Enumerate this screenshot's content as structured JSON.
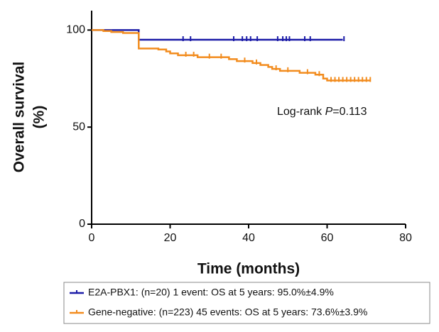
{
  "chart_data": {
    "type": "step",
    "xlabel": "Time (months)",
    "ylabel": [
      "Overall survival",
      "(%)"
    ],
    "annotation": [
      "Log-rank ",
      "P",
      "=0.113"
    ],
    "xlim": [
      0,
      80
    ],
    "xticks": [
      0,
      20,
      40,
      60,
      80
    ],
    "ylim": [
      0,
      110
    ],
    "yticks": [
      0,
      50,
      100
    ],
    "series": [
      {
        "name": "E2A-PBX1: (n=20) 1 event: OS at 5 years: 95.0%±4.9%",
        "color": "#1c1ca8",
        "x": [
          0,
          12,
          64
        ],
        "values": [
          100,
          95,
          95
        ],
        "censor_x": [
          23.3,
          25.2,
          36.2,
          38.4,
          39.5,
          40.5,
          42.2,
          47.4,
          48.7,
          49.6,
          50.4,
          54.3,
          55.7,
          64.3
        ],
        "censor_values": [
          95,
          95,
          95,
          95,
          95,
          95,
          95,
          95,
          95,
          95,
          95,
          95,
          95,
          95
        ]
      },
      {
        "name": "Gene-negative: (n=223) 45 events: OS at 5 years: 73.6%±3.9%",
        "color": "#f28c1e",
        "x": [
          0,
          3,
          5,
          8,
          12,
          17,
          19,
          20,
          22,
          27,
          35,
          37,
          41,
          43,
          45,
          46,
          48,
          53,
          57,
          59,
          60,
          71
        ],
        "values": [
          100,
          99.5,
          99,
          98.5,
          90.5,
          90,
          89,
          88,
          87,
          86,
          85,
          84,
          83,
          82,
          81,
          80,
          79,
          78,
          77,
          75,
          74,
          74
        ],
        "censor_x": [
          24,
          26,
          30,
          33,
          39,
          42,
          47,
          50,
          55,
          58,
          61,
          62,
          63,
          64,
          65,
          66,
          67,
          68,
          69,
          70,
          71
        ],
        "censor_values": [
          87,
          87,
          86,
          86,
          84,
          83,
          80,
          79,
          78,
          77,
          74,
          74,
          74,
          74,
          74,
          74,
          74,
          74,
          74,
          74,
          74
        ]
      }
    ]
  }
}
